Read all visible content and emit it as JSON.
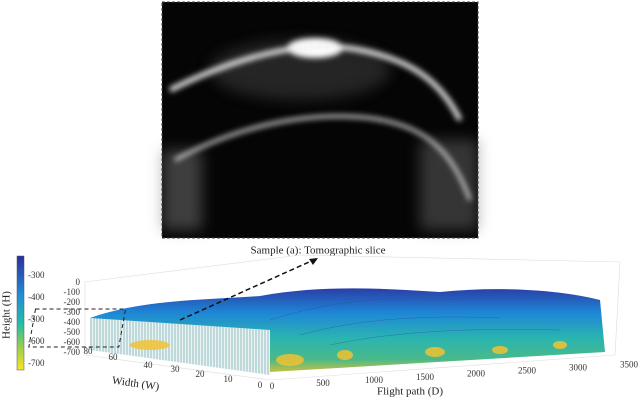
{
  "figure": {
    "slice_caption": "Sample (a): Tomographic slice",
    "colorbar": {
      "label": "Height (H)",
      "ticks": [
        "-300",
        "-400",
        "-500",
        "-600",
        "-700"
      ]
    },
    "height_axis": {
      "ticks": [
        "0",
        "-100",
        "-200",
        "-300",
        "-400",
        "-500",
        "-600",
        "-700"
      ]
    },
    "width_axis": {
      "label": "Width (W)",
      "ticks": [
        "80",
        "60",
        "40",
        "30",
        "20",
        "10",
        "0"
      ]
    },
    "flight_axis": {
      "label": "Flight path (D)",
      "ticks": [
        "0",
        "500",
        "1000",
        "1500",
        "2000",
        "2500",
        "3000",
        "3500"
      ]
    }
  }
}
